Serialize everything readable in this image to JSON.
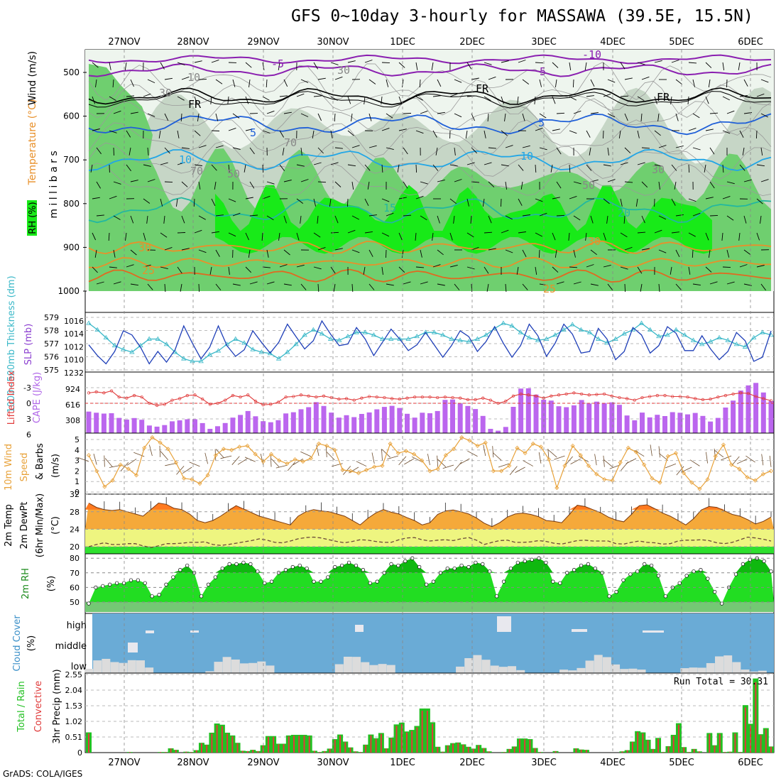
{
  "title": "GFS 0~10day 3-hourly for MASSAWA (39.5E, 15.5N)",
  "footer": "GrADS: COLA/IGES",
  "date_labels": [
    "27NOV",
    "28NOV",
    "29NOV",
    "30NOV",
    "1DEC",
    "2DEC",
    "3DEC",
    "4DEC",
    "5DEC",
    "6DEC"
  ],
  "colors": {
    "rh_light": "#e3f1e3",
    "rh_gray": "#c6d6c6",
    "rh_mid": "#6fcf6f",
    "rh_bright": "#18ea18",
    "purple": "#8a1fb0",
    "blue": "#1f5fd8",
    "cyan": "#22a6e6",
    "teal": "#22b8a0",
    "orange": "#e8902a",
    "cape": "#bb66ee",
    "li": "#e03a3a",
    "slp": "#1f3fb8",
    "thick": "#3ab8c8",
    "wind": "#e8a23a",
    "temp": "#ff7a1f",
    "cloud_bg": "#6aabd6",
    "precip_total": "#22c022",
    "precip_conv": "#e03a3a"
  },
  "panels": {
    "upper_air": {
      "ylabel_mb": "m i l l i b a r s",
      "label_rh": "RH (%)",
      "label_temp": "Temperature (°C)",
      "label_wind": "Wind (m/s)",
      "yticks": [
        "500",
        "600",
        "700",
        "800",
        "900",
        "1000"
      ],
      "contour_labels": [
        "-5",
        "5",
        "-10",
        "FR",
        "FR",
        "FR",
        "5",
        "5",
        "10",
        "10",
        "15",
        "20",
        "30",
        "25",
        "25",
        "30",
        "10",
        "30",
        "30",
        "50",
        "70",
        "70",
        "30",
        "50"
      ]
    },
    "slp": {
      "label_thick": "1000~500mb Thickness (dm)",
      "label_slp": "SLP (mb)",
      "yticks_thick": [
        "579",
        "578",
        "577",
        "576",
        "575"
      ],
      "yticks_slp": [
        "1016",
        "1014",
        "1012",
        "1010",
        "1232"
      ]
    },
    "cape": {
      "label_li": "Lifted Index",
      "label_cape": "CAPE (J/kg)",
      "yticks_li": [
        "-3",
        "0",
        "3",
        "6"
      ],
      "yticks_cape": [
        "924",
        "616",
        "308"
      ]
    },
    "wind10m": {
      "label": "10m Wind Speed & Barbs (m/s)",
      "label_a": "10m Wind",
      "label_b": "Speed",
      "label_c": "& Barbs",
      "label_d": "(m/s)",
      "yticks": [
        "5",
        "4",
        "3",
        "2",
        "1",
        "0"
      ]
    },
    "temp2m": {
      "label_a": "2m Temp",
      "label_b": "2m DewPt",
      "label_c": "(6hr Min/Max)",
      "label_d": "(°C)",
      "yticks": [
        "32",
        "28",
        "24",
        "20"
      ]
    },
    "rh2m": {
      "label": "2m RH",
      "label_unit": "(%)",
      "yticks": [
        "80",
        "70",
        "60",
        "50"
      ]
    },
    "cloud": {
      "label": "Cloud Cover",
      "label_unit": "(%)",
      "levels": [
        "high",
        "middle",
        "low"
      ]
    },
    "precip": {
      "label_total": "Total / Rain",
      "label_conv": "Convective",
      "label_axis": "3hr Precip (mm)",
      "yticks": [
        "2.55",
        "2.04",
        "1.53",
        "1.02",
        "0.51",
        "0"
      ],
      "run_total": "Run Total = 30.31"
    }
  },
  "chart_data": [
    {
      "type": "line",
      "name": "slp_thickness",
      "x_unit": "3-hourly steps from 26NOV 21Z",
      "series": [
        {
          "name": "SLP (mb)",
          "values": [
            1013.3,
            1012,
            1011,
            1012.5,
            1015,
            1014.5,
            1013,
            1011,
            1012.5,
            1011.2,
            1012.7,
            1015.6,
            1013.5,
            1011.6,
            1013,
            1015.6,
            1013.2,
            1011.9,
            1012.7,
            1015,
            1013.6,
            1012.3,
            1013.6,
            1015.8,
            1014.3,
            1012.8,
            1013.8,
            1016.2,
            1014.6,
            1013.2,
            1013.4,
            1015.4,
            1014,
            1012,
            1013.6,
            1015.2,
            1014,
            1012.6,
            1013.3,
            1014.8,
            1013.3,
            1011.8,
            1013.2,
            1015,
            1014.3,
            1012.5,
            1013.7,
            1015.5,
            1013.5,
            1011.8,
            1013.2,
            1015.8,
            1014.4,
            1011.9,
            1013.5,
            1015.8,
            1014.6,
            1012.3,
            1012.5,
            1015.3,
            1014,
            1011.5,
            1012.5,
            1015.4,
            1014.5,
            1012.3,
            1013.2,
            1015.5,
            1014.7,
            1012.6,
            1012.6,
            1014.4,
            1012.8,
            1011.5,
            1012.5,
            1014.8,
            1013.8,
            1011.3,
            1011.8,
            1015
          ]
        },
        {
          "name": "1000~500mb Thickness (dm)",
          "values": [
            578.5,
            578,
            577.4,
            576.8,
            576.5,
            576.3,
            576.8,
            577.3,
            577.3,
            576.9,
            576.3,
            575.8,
            575.6,
            575.6,
            576.1,
            576.4,
            576.9,
            577.3,
            577,
            576.5,
            576.3,
            576.2,
            575.8,
            576.3,
            576.9,
            577.6,
            578.0,
            577.7,
            577.3,
            577.2,
            577.5,
            577.8,
            577.8,
            577.6,
            577.3,
            577.3,
            577.3,
            577.3,
            577.5,
            577.8,
            577.8,
            577.6,
            577.3,
            577.2,
            577.1,
            577.3,
            577.6,
            578.1,
            578.5,
            578.3,
            577.8,
            577.4,
            577.2,
            577.3,
            577.6,
            578.0,
            578.4,
            578.0,
            577.8,
            577.3,
            577.0,
            577.3,
            577.7,
            578.0,
            578.5,
            578.0,
            577.5,
            577.6,
            578.0,
            577.6,
            577.2,
            576.9,
            577.1,
            577.4,
            577.2,
            576.9,
            576.7,
            577.4,
            577.8,
            577.6
          ]
        }
      ]
    },
    {
      "type": "bar",
      "name": "cape_li",
      "x_unit": "3-hourly steps",
      "series": [
        {
          "name": "CAPE (J/kg)",
          "values": [
            452,
            427,
            410,
            417,
            319,
            283,
            316,
            280,
            159,
            135,
            168,
            247,
            268,
            290,
            290,
            210,
            90,
            145,
            212,
            325,
            381,
            463,
            353,
            250,
            228,
            271,
            413,
            438,
            501,
            544,
            650,
            570,
            431,
            325,
            376,
            336,
            402,
            434,
            499,
            550,
            573,
            528,
            405,
            325,
            428,
            417,
            464,
            697,
            705,
            620,
            569,
            505,
            360,
            89,
            51,
            130,
            551,
            935,
            941,
            808,
            701,
            682,
            564,
            544,
            582,
            694,
            619,
            660,
            632,
            645,
            593,
            369,
            269,
            430,
            330,
            384,
            357,
            439,
            427,
            393,
            423,
            360,
            243,
            319,
            536,
            683,
            893,
            1001,
            1054,
            853,
            674
          ]
        },
        {
          "name": "Lifted Index",
          "values": [
            -2,
            -2.2,
            -2,
            -2.4,
            -1.2,
            -1,
            -1.5,
            -1.2,
            0,
            0.4,
            0.2,
            -0.6,
            -0.9,
            -1.5,
            -1.6,
            -0.8,
            0.2,
            0,
            -0.6,
            -1.5,
            -1.2,
            -1.6,
            -0.4,
            0.3,
            0.2,
            -0.2,
            -1.2,
            -1.3,
            -1.6,
            -1.4,
            -1.2,
            -1.4,
            -1.1,
            -0.8,
            -0.9,
            -0.6,
            -1.0,
            -1.3,
            -1.2,
            -1.1,
            -0.9,
            -0.8,
            -1.0,
            -1.2,
            -1.2,
            -1.2,
            -1.1,
            -1.2,
            -1.1,
            -1.0,
            -0.7,
            -0.7,
            -1.0,
            -0.6,
            0,
            -0.4,
            -1.4,
            -1.8,
            -1.6,
            -1.4,
            -1.0,
            -1.4,
            -1.6,
            -1.8,
            -2.0,
            -1.8,
            -1.6,
            -1.7,
            -1.8,
            -1.4,
            -1.1,
            -0.9,
            -0.6,
            -1.1,
            -1.3,
            -1.5,
            -1.5,
            -1.3,
            -1.3,
            -1.2,
            -0.9,
            -0.7,
            -0.8,
            -1.2,
            -1.5,
            -1.8,
            -2.0,
            -1.9,
            -1.3,
            -0.9,
            -0.5
          ]
        }
      ]
    },
    {
      "type": "line",
      "name": "wind10m",
      "x_unit": "3-hourly steps",
      "series": [
        {
          "name": "10m Wind Speed (m/s)",
          "values": [
            3.5,
            2,
            0.5,
            1.1,
            2.6,
            2.2,
            1.6,
            4.2,
            5.2,
            4.7,
            4.1,
            2.8,
            1.3,
            1.2,
            0.8,
            1.6,
            3.5,
            4.1,
            4.0,
            4.3,
            4.4,
            3.6,
            2.9,
            3.6,
            3.0,
            2.7,
            3.1,
            2.9,
            3.2,
            4.6,
            4.4,
            4.0,
            2.1,
            2.0,
            1.8,
            2.1,
            2.4,
            2.5,
            4.6,
            3.7,
            3.9,
            3.6,
            3.0,
            2.0,
            2.2,
            3.5,
            4.1,
            5.2,
            4.9,
            4.4,
            4.7,
            2.0,
            2.0,
            2.5,
            4.2,
            3.7,
            4.6,
            4.3,
            3.1,
            0.4,
            2.5,
            4.4,
            3.5,
            2.5,
            1.7,
            1.2,
            1.1,
            2.8,
            4.2,
            3.8,
            2.6,
            1.3,
            0.9,
            3.4,
            3.7,
            1.8,
            0.9,
            0.3,
            1.2,
            3.4,
            4.5,
            2.6,
            2.2,
            1.4,
            1.1,
            1.7,
            2.0
          ]
        }
      ]
    },
    {
      "type": "area",
      "name": "temp2m",
      "x_unit": "3-hourly steps",
      "series": [
        {
          "name": "2m Temp (°C)",
          "values": [
            30,
            29,
            28.5,
            28.3,
            28.5,
            28,
            27.5,
            27,
            28.5,
            30,
            29.7,
            28.8,
            28.5,
            27.5,
            26,
            25.5,
            26,
            27,
            28.2,
            29.4,
            28.6,
            27.8,
            27,
            26.5,
            26,
            25.5,
            25,
            27,
            28,
            28.5,
            28.2,
            28,
            27.5,
            27,
            26,
            25,
            26.5,
            27.7,
            28.5,
            27.9,
            27.5,
            26.7,
            26,
            25,
            25.5,
            27.4,
            28.2,
            28.4,
            28,
            27.5,
            26.6,
            25.4,
            24.6,
            25.5,
            26.8,
            27.5,
            27.7,
            27.4,
            26.9,
            26.0,
            25.8,
            25.5,
            27.4,
            29.5,
            29.2,
            28.5,
            27.8,
            26.8,
            26.1,
            25.7,
            27.4,
            29.4,
            29.6,
            28.7,
            27.7,
            27,
            26,
            25,
            26.4,
            28.4,
            29.2,
            29.0,
            28.2,
            27.4,
            27,
            26.2,
            25.2,
            25.8,
            26.8
          ]
        },
        {
          "name": "2m DewPt (°C)",
          "values": [
            20,
            20.5,
            20.9,
            20.5,
            20.5,
            20.7,
            20.7,
            20.2,
            19.8,
            20.2,
            20.7,
            20.7,
            20.8,
            21,
            21,
            21.1,
            20.5,
            20.3,
            20.5,
            20.8,
            21.1,
            21.4,
            21.8,
            21.5,
            21.0,
            20.9,
            21.3,
            21.8,
            22.1,
            22.2,
            22.0,
            21.6,
            21.2,
            20.9,
            21.2,
            21.6,
            21.5,
            21.2,
            21.0,
            21.0,
            21.6,
            22.0,
            22.1,
            21.6,
            21.3,
            21.5,
            21.6,
            21.4,
            21.8,
            22.1,
            21.5,
            20.5,
            21.0,
            21.4,
            21.5,
            21.0,
            21.0,
            21.1,
            21.4,
            21.2,
            20.8,
            20.6,
            21.0,
            21.4,
            21.5,
            21.3,
            21.3,
            21.3,
            20.7,
            20.6,
            21.0,
            21.3,
            21.0,
            20.9,
            20.6,
            20.7,
            21.3,
            21.5,
            21.5,
            21.6,
            21.4,
            20.9,
            20.7,
            21.0,
            21.6,
            22.2,
            22.0,
            21.7,
            21.3
          ]
        }
      ]
    },
    {
      "type": "area",
      "name": "rh2m",
      "x_unit": "3-hourly steps",
      "series": [
        {
          "name": "2m RH (%)",
          "values": [
            49,
            60,
            61,
            62,
            63,
            63,
            65,
            65,
            63,
            54,
            55,
            62,
            67,
            72,
            75,
            70,
            54,
            62,
            67,
            73,
            76,
            76,
            77,
            76,
            71,
            63,
            64,
            70,
            72,
            74,
            75,
            73,
            64,
            64,
            67,
            74,
            75,
            77,
            75,
            72,
            63,
            64,
            70,
            76,
            75,
            78,
            80,
            74,
            62,
            64,
            70,
            73,
            73,
            75,
            74,
            77,
            76,
            71,
            54,
            64,
            73,
            77,
            78,
            79,
            80,
            77,
            64,
            63,
            70,
            72,
            75,
            76,
            73,
            70,
            54,
            57,
            65,
            69,
            71,
            76,
            75,
            68,
            54,
            60,
            63,
            68,
            71,
            72,
            66,
            57,
            49,
            60,
            69,
            76,
            79,
            80,
            78,
            71
          ]
        }
      ]
    },
    {
      "type": "bar",
      "name": "precip",
      "x_unit": "3-hourly steps",
      "series": [
        {
          "name": "Total / Rain (mm)",
          "values": [
            0.66,
            0,
            0,
            0,
            0,
            0,
            0,
            0,
            0.02,
            0,
            0,
            0,
            0,
            0,
            0.02,
            0.02,
            0.14,
            0.09,
            0,
            0.03,
            0.02,
            0.08,
            0.32,
            0.26,
            0.65,
            0.95,
            0.91,
            0.65,
            0.56,
            0.32,
            0.06,
            0.05,
            0.09,
            0.05,
            0.24,
            0.54,
            0.54,
            0.29,
            0.29,
            0.56,
            0.58,
            0.58,
            0.58,
            0.56,
            0.06,
            0.02,
            0.05,
            0.13,
            0.44,
            0.59,
            0.36,
            0.17,
            0.04,
            0.02,
            0.26,
            0.59,
            0.47,
            0.64,
            0.14,
            0.49,
            0.92,
            0.98,
            0.69,
            0.74,
            0.87,
            1.44,
            1.44,
            0.99,
            0.19,
            0.03,
            0.24,
            0.31,
            0.33,
            0.27,
            0.19,
            0.13,
            0.25,
            0.15,
            0.04,
            0,
            0,
            0.02,
            0.12,
            0.2,
            0.46,
            0.46,
            0.44,
            0.15,
            0.02,
            0,
            0,
            0.05,
            0,
            0,
            0,
            0.14,
            0.1,
            0.09,
            0,
            0,
            0,
            0,
            0,
            0,
            0.04,
            0.08,
            0.36,
            0.7,
            0.66,
            0.42,
            0.12,
            0.48,
            0.02,
            0.21,
            0.58,
            0.96,
            0.18,
            0.02,
            0.12,
            0.04,
            0,
            0.64,
            0.24,
            0.64,
            0.02,
            0.03,
            0.66,
            0.02,
            1.55,
            0.94,
            2.42,
            0.6,
            0.8,
            0.2
          ]
        }
      ]
    }
  ]
}
